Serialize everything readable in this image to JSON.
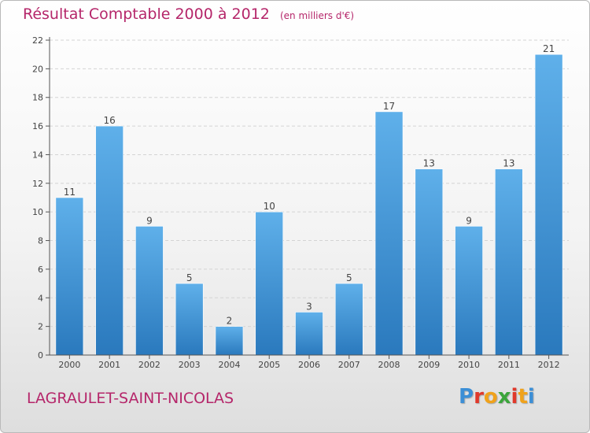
{
  "header": {
    "title": "Résultat Comptable 2000 à 2012",
    "subtitle": "(en milliers d'€)"
  },
  "footer": {
    "commune": "LAGRAULET-SAINT-NICOLAS",
    "logo": {
      "letters": [
        "P",
        "r",
        "o",
        "x",
        "i",
        "t",
        "i"
      ],
      "colors": [
        "#3c8fd6",
        "#e0392b",
        "#f0a21b",
        "#3ba53b",
        "#e0392b",
        "#f0a21b",
        "#3c8fd6"
      ]
    }
  },
  "colors": {
    "bar_top": "#5fb0ea",
    "bar_bottom": "#2a79bd",
    "accent": "#b5266a"
  },
  "chart_data": {
    "type": "bar",
    "title": "Résultat Comptable 2000 à 2012",
    "subtitle": "(en milliers d'€)",
    "xlabel": "",
    "ylabel": "",
    "categories": [
      "2000",
      "2001",
      "2002",
      "2003",
      "2004",
      "2005",
      "2006",
      "2007",
      "2008",
      "2009",
      "2010",
      "2011",
      "2012"
    ],
    "values": [
      11,
      16,
      9,
      5,
      2,
      10,
      3,
      5,
      17,
      13,
      9,
      13,
      21
    ],
    "data_labels": [
      "11",
      "16",
      "9",
      "5",
      "2",
      "10",
      "3",
      "5",
      "17",
      "13",
      "9",
      "13",
      "21"
    ],
    "ylim": [
      0,
      22
    ],
    "yticks": [
      0,
      2,
      4,
      6,
      8,
      10,
      12,
      14,
      16,
      18,
      20,
      22
    ],
    "grid": true
  }
}
